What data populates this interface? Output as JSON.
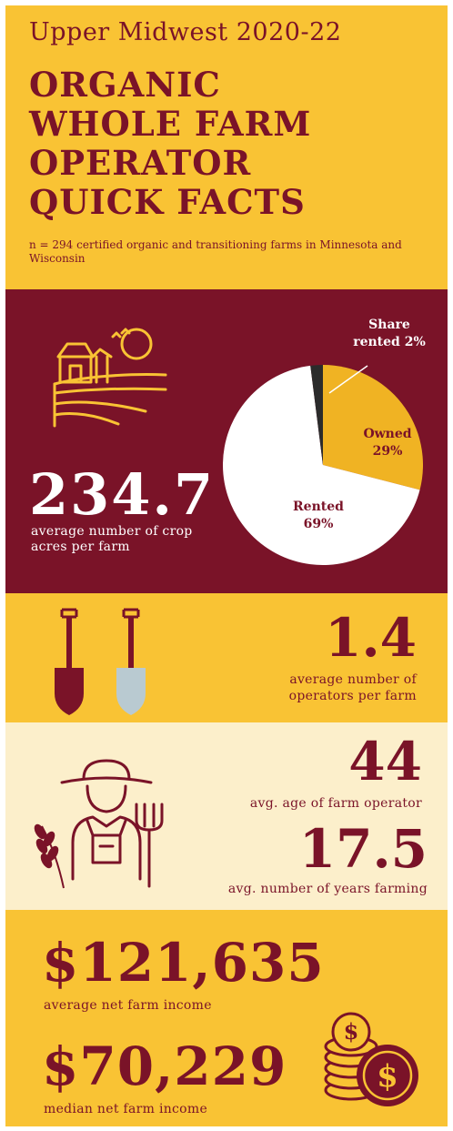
{
  "header": {
    "region": "Upper Midwest 2020-22",
    "title_lines": [
      "ORGANIC",
      "WHOLE FARM",
      "OPERATOR",
      "QUICK FACTS"
    ],
    "sample_note": "n = 294 certified organic and transitioning farms in Minnesota and Wisconsin"
  },
  "acres": {
    "value": "234.7",
    "label": "average number of crop acres per farm"
  },
  "operators": {
    "value": "1.4",
    "label": "average number of operators per farm"
  },
  "age": {
    "value": "44",
    "label": "avg. age of farm operator"
  },
  "years": {
    "value": "17.5",
    "label": "avg. number of years farming"
  },
  "income": {
    "average_value": "$121,635",
    "average_label": "average net farm income",
    "median_value": "$70,229",
    "median_label": "median net farm income"
  },
  "colors": {
    "gold": "#F9C334",
    "maroon": "#7A1328",
    "cream": "#FCEFCB",
    "pie_rented": "#FFFFFF",
    "pie_owned": "#F0B323",
    "pie_share": "#2B2B2B",
    "shovel_grey": "#B9CAD1"
  },
  "icons": [
    "farm-landscape-icon",
    "shovel-icon",
    "farmer-icon",
    "pitchfork-icon",
    "wheat-icon",
    "coins-icon"
  ],
  "chart_data": {
    "type": "pie",
    "title": "",
    "slices": [
      {
        "name": "Owned",
        "value": 29,
        "label_name": "Owned",
        "label_value": "29%"
      },
      {
        "name": "Rented",
        "value": 69,
        "label_name": "Rented",
        "label_value": "69%"
      },
      {
        "name": "Share rented",
        "value": 2,
        "label_name": "Share",
        "label_value": "rented 2%"
      }
    ]
  }
}
